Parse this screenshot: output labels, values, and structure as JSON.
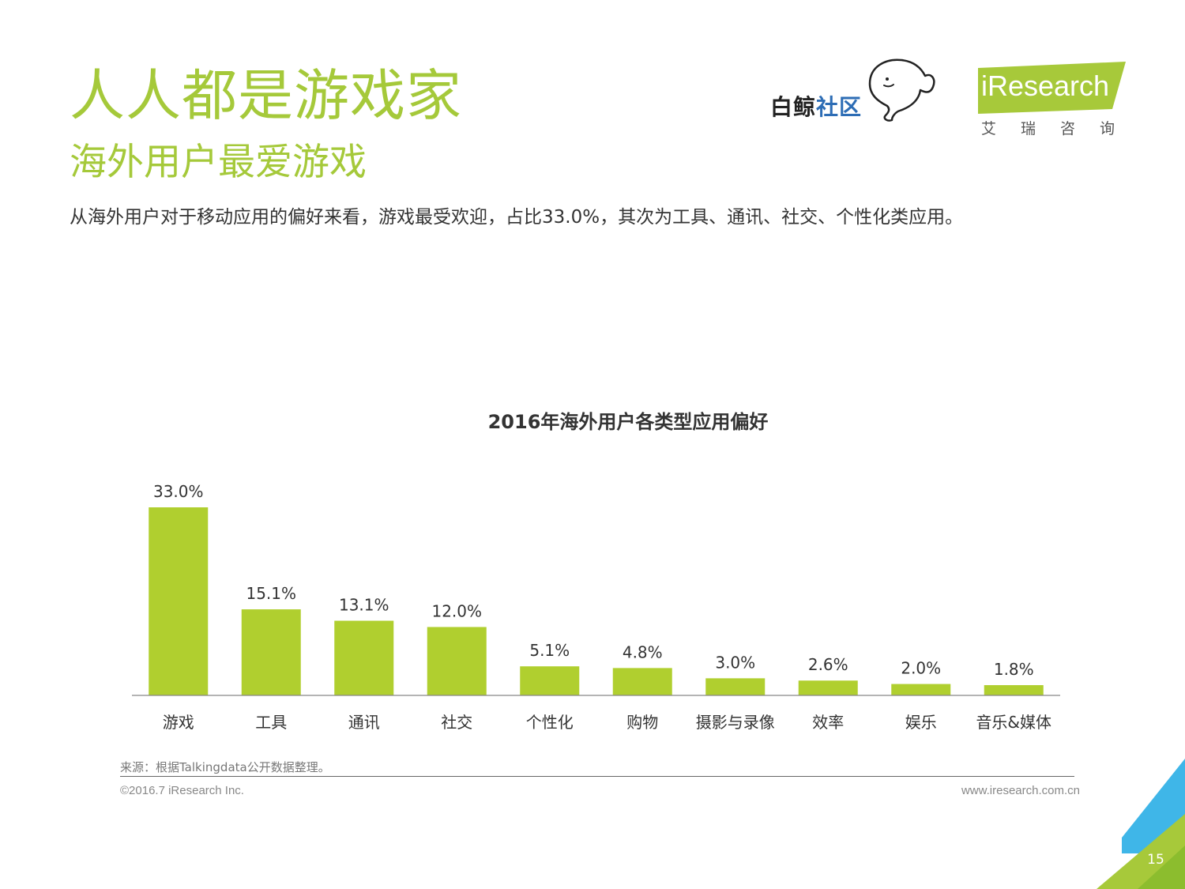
{
  "header": {
    "title": "人人都是游戏家",
    "subtitle": "海外用户最爱游戏",
    "lead": "从海外用户对于移动应用的偏好来看，游戏最受欢迎，占比33.0%，其次为工具、通讯、社交、个性化类应用。"
  },
  "logos": {
    "partner_part1": "白鲸",
    "partner_part2": "社区",
    "brand_name": "iResearch",
    "brand_sub": "艾瑞咨询"
  },
  "chart_data": {
    "type": "bar",
    "title": "2016年海外用户各类型应用偏好",
    "categories": [
      "游戏",
      "工具",
      "通讯",
      "社交",
      "个性化",
      "购物",
      "摄影与录像",
      "效率",
      "娱乐",
      "音乐&媒体"
    ],
    "values": [
      33.0,
      15.1,
      13.1,
      12.0,
      5.1,
      4.8,
      3.0,
      2.6,
      2.0,
      1.8
    ],
    "value_labels": [
      "33.0%",
      "15.1%",
      "13.1%",
      "12.0%",
      "5.1%",
      "4.8%",
      "3.0%",
      "2.6%",
      "2.0%",
      "1.8%"
    ],
    "unit": "%",
    "ylim": [
      0,
      33.0
    ],
    "grid": false,
    "legend": "none",
    "bar_color": "#b0cf2f"
  },
  "footer": {
    "source": "来源：根据Talkingdata公开数据整理。",
    "copyright": "©2016.7 iResearch Inc.",
    "url": "www.iresearch.com.cn",
    "page_number": "15"
  },
  "colors": {
    "accent_green": "#a5c93a",
    "corner_blue": "#3fb6e8",
    "corner_green": "#a7c93a"
  }
}
